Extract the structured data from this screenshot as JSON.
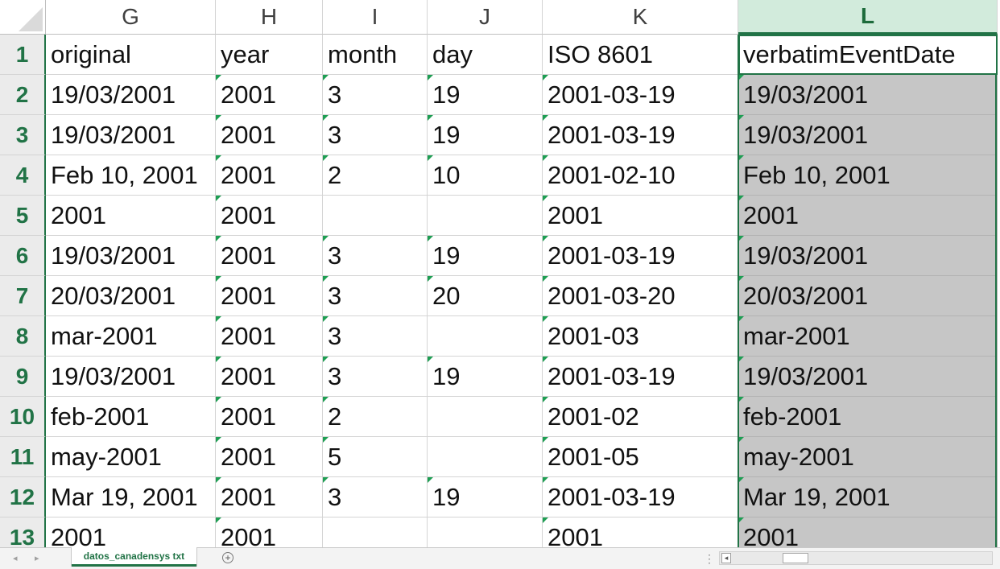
{
  "columns": [
    "G",
    "H",
    "I",
    "J",
    "K",
    "L"
  ],
  "selected_column": "L",
  "rows": [
    {
      "num": "1",
      "cells": [
        "original",
        "year",
        "month",
        "day",
        "ISO 8601",
        "verbatimEventDate"
      ]
    },
    {
      "num": "2",
      "cells": [
        "19/03/2001",
        "2001",
        "3",
        "19",
        "2001-03-19",
        "19/03/2001"
      ]
    },
    {
      "num": "3",
      "cells": [
        "19/03/2001",
        "2001",
        "3",
        "19",
        "2001-03-19",
        "19/03/2001"
      ]
    },
    {
      "num": "4",
      "cells": [
        "Feb 10, 2001",
        "2001",
        "2",
        "10",
        "2001-02-10",
        "Feb 10, 2001"
      ]
    },
    {
      "num": "5",
      "cells": [
        "2001",
        "2001",
        "",
        "",
        "2001",
        "2001"
      ]
    },
    {
      "num": "6",
      "cells": [
        "19/03/2001",
        "2001",
        "3",
        "19",
        "2001-03-19",
        "19/03/2001"
      ]
    },
    {
      "num": "7",
      "cells": [
        "20/03/2001",
        "2001",
        "3",
        "20",
        "2001-03-20",
        "20/03/2001"
      ]
    },
    {
      "num": "8",
      "cells": [
        "mar-2001",
        "2001",
        "3",
        "",
        "2001-03",
        "mar-2001"
      ]
    },
    {
      "num": "9",
      "cells": [
        "19/03/2001",
        "2001",
        "3",
        "19",
        "2001-03-19",
        "19/03/2001"
      ]
    },
    {
      "num": "10",
      "cells": [
        "feb-2001",
        "2001",
        "2",
        "",
        "2001-02",
        "feb-2001"
      ]
    },
    {
      "num": "11",
      "cells": [
        "may-2001",
        "2001",
        "5",
        "",
        "2001-05",
        "may-2001"
      ]
    },
    {
      "num": "12",
      "cells": [
        "Mar 19, 2001",
        "2001",
        "3",
        "19",
        "2001-03-19",
        "Mar 19, 2001"
      ]
    },
    {
      "num": "13",
      "cells": [
        "2001",
        "2001",
        "",
        "",
        "2001",
        "2001"
      ]
    }
  ],
  "sheet_tab": "datos_canadensys txt",
  "icons": {
    "add_sheet": "plus-circle-icon",
    "prev_sheet": "triangle-left-icon",
    "next_sheet": "triangle-right-icon",
    "splitter": "vertical-ellipsis-icon",
    "scroll_left": "triangle-left-icon"
  }
}
